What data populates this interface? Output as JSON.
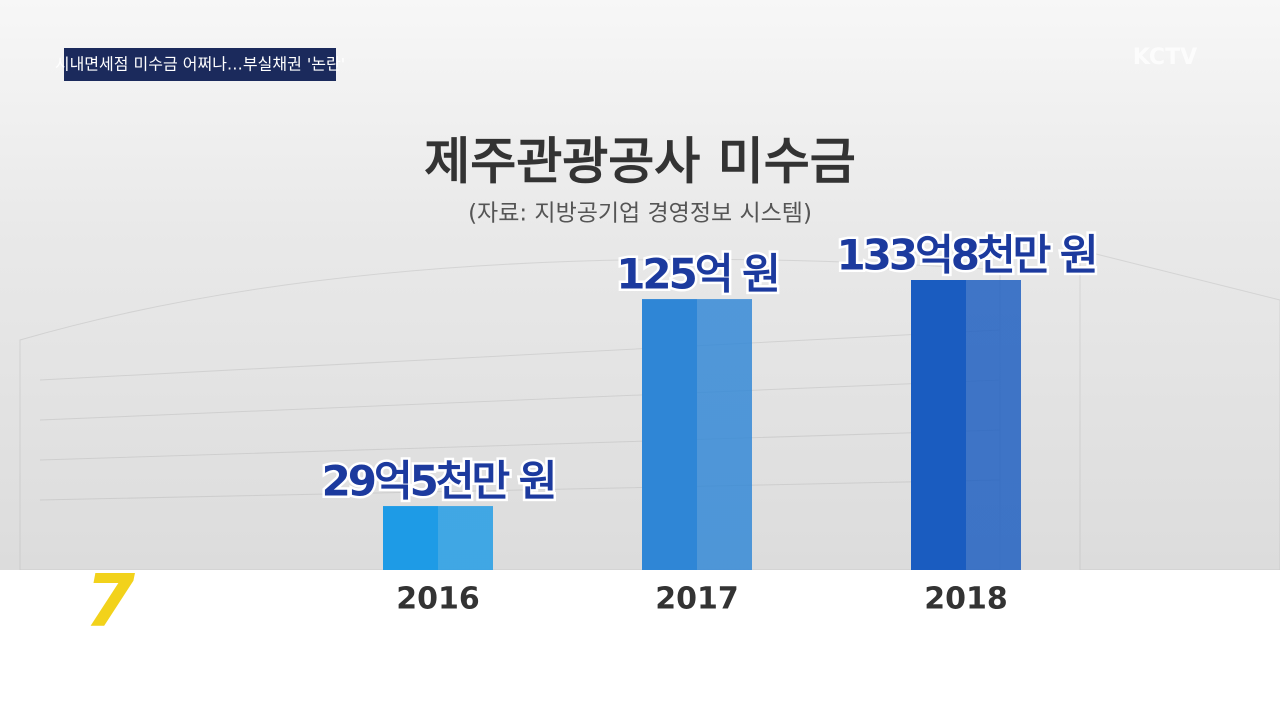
{
  "banner": "시내면세점 미수금 어쩌나…부실채권 '논란'",
  "logo": "KCTV",
  "program_logo": "7",
  "chart_data": {
    "type": "bar",
    "title": "제주관광공사 미수금",
    "subtitle": "(자료: 지방공기업 경영정보 시스템)",
    "categories": [
      "2016",
      "2017",
      "2018"
    ],
    "values": [
      29.5,
      125,
      133.8
    ],
    "value_labels": [
      "29억5천만 원",
      "125억 원",
      "133억8천만 원"
    ],
    "colors": [
      "#1e9be6",
      "#2f86d6",
      "#1a5cc0"
    ]
  }
}
